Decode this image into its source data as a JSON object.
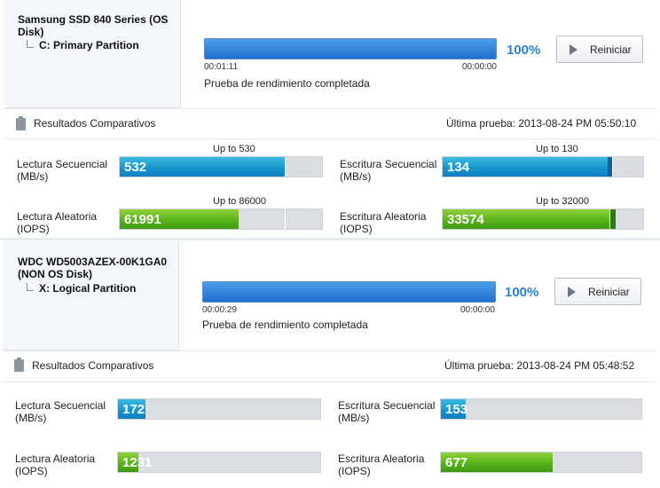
{
  "disks": [
    {
      "name": "Samsung SSD 840 Series  (OS Disk)",
      "partition": "C: Primary Partition",
      "progress_percent": 100,
      "progress_label": "100%",
      "elapsed": "00:01:11",
      "remaining": "00:00:00",
      "status": "Prueba de rendimiento completada",
      "restart_label": "Reiniciar",
      "results_title": "Resultados Comparativos",
      "last_test": "Última prueba: 2013-08-24 PM 05:50:10",
      "metrics": {
        "seq_read": {
          "label1": "Lectura Secuencial",
          "label2": "(MB/s)",
          "value": "532",
          "max": "Up to 530",
          "ratio": 0.82
        },
        "seq_write": {
          "label1": "Escritura Secuencial",
          "label2": "(MB/s)",
          "value": "134",
          "max": "Up to 130",
          "ratio": 0.82
        },
        "rand_read": {
          "label1": "Lectura Aleatoria",
          "label2": "(IOPS)",
          "value": "61991",
          "max": "Up to 86000",
          "ratio": 0.59
        },
        "rand_write": {
          "label1": "Escritura Aleatoria",
          "label2": "(IOPS)",
          "value": "33574",
          "max": "Up to 32000",
          "ratio": 0.84
        }
      }
    },
    {
      "name": "WDC WD5003AZEX-00K1GA0 (NON OS Disk)",
      "partition": "X: Logical Partition",
      "progress_percent": 100,
      "progress_label": "100%",
      "elapsed": "00:00:29",
      "remaining": "00:00:00",
      "status": "Prueba de rendimiento completada",
      "restart_label": "Reiniciar",
      "results_title": "Resultados Comparativos",
      "last_test": "Última prueba: 2013-08-24 PM 05:48:52",
      "metrics": {
        "seq_read": {
          "label1": "Lectura Secuencial",
          "label2": "(MB/s)",
          "value": "172",
          "ratio": 0.14
        },
        "seq_write": {
          "label1": "Escritura Secuencial",
          "label2": "(MB/s)",
          "value": "153",
          "ratio": 0.12
        },
        "rand_read": {
          "label1": "Lectura Aleatoria",
          "label2": "(IOPS)",
          "value": "1231",
          "ratio": 0.1
        },
        "rand_write": {
          "label1": "Escritura Aleatoria",
          "label2": "(IOPS)",
          "value": "677",
          "ratio": 0.55
        }
      }
    }
  ],
  "colors": {
    "accent": "#2a82d8",
    "seq_fill": "#1593cc",
    "rand_fill": "#55b01a"
  }
}
